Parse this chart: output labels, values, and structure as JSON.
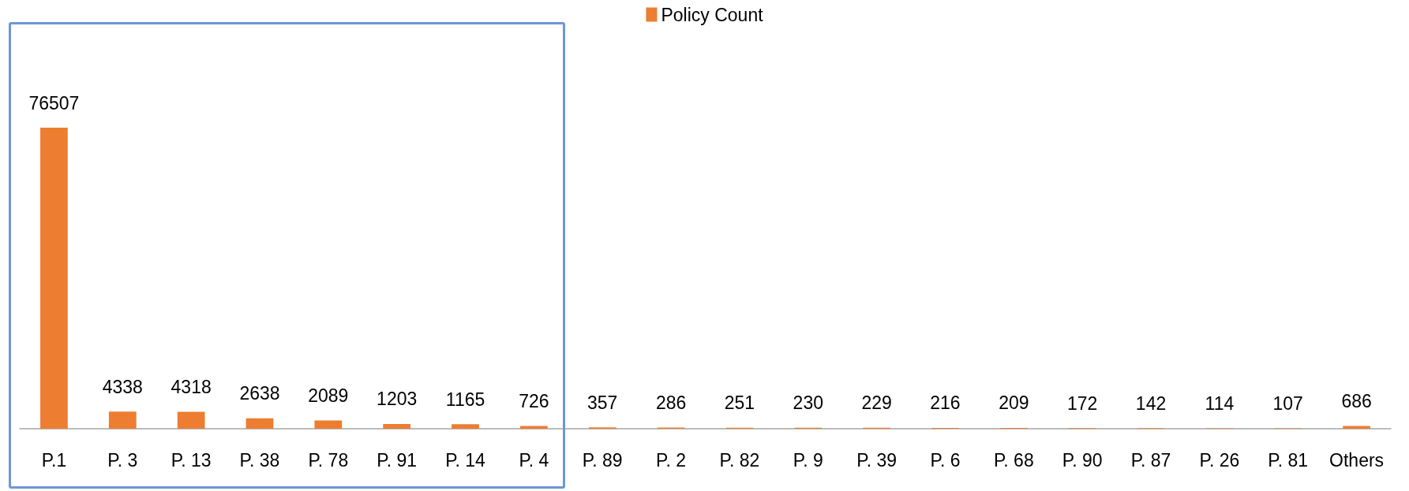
{
  "chart_data": {
    "type": "bar",
    "categories": [
      "P.1",
      "P. 3",
      "P. 13",
      "P. 38",
      "P. 78",
      "P. 91",
      "P. 14",
      "P. 4",
      "P. 89",
      "P. 2",
      "P. 82",
      "P. 9",
      "P. 39",
      "P. 6",
      "P. 68",
      "P. 90",
      "P. 87",
      "P. 26",
      "P. 81",
      "Others"
    ],
    "series": [
      {
        "name": "Policy Count",
        "color": "#ed7d31",
        "values": [
          76507,
          4338,
          4318,
          2638,
          2089,
          1203,
          1165,
          726,
          357,
          286,
          251,
          230,
          229,
          216,
          209,
          172,
          142,
          114,
          107,
          686
        ]
      }
    ],
    "data_labels": true,
    "legend": "top"
  }
}
